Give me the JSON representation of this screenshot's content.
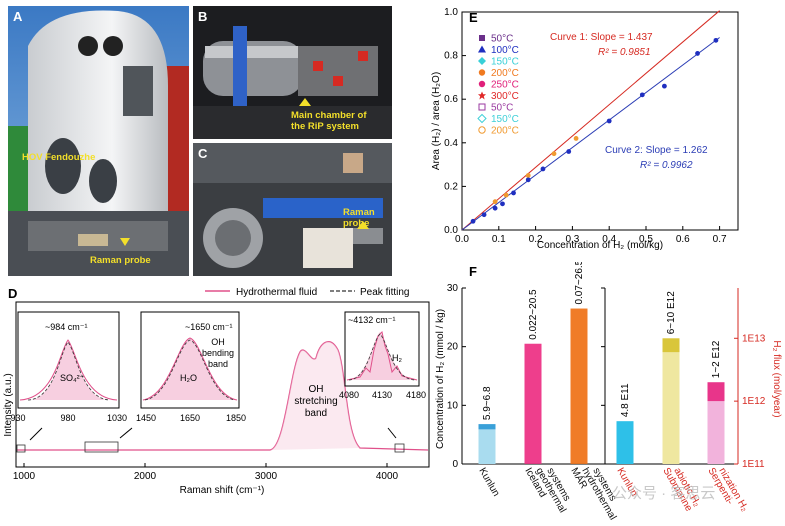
{
  "photos": {
    "A": {
      "label": "A",
      "caption": "HOV Fendouzhe",
      "probe": "Raman probe"
    },
    "B": {
      "label": "B",
      "caption_line1": "Main chamber of",
      "caption_line2": "the RiP system"
    },
    "C": {
      "label": "C",
      "probe": "Raman probe"
    }
  },
  "panel_d": {
    "label": "D",
    "legend_fluid": "Hydrothermal fluid",
    "legend_fit": "Peak fitting",
    "ylabel": "Intensity (a.u.)",
    "xlabel": "Raman shift (cm⁻¹)",
    "xticks": [
      "1000",
      "2000",
      "3000",
      "4000"
    ],
    "oh_stretch_1": "OH",
    "oh_stretch_2": "stretching",
    "oh_stretch_3": "band",
    "inset1": {
      "peak": "~984 cm⁻¹",
      "species": "SO₄²⁻",
      "ticks": [
        "930",
        "980",
        "1030"
      ]
    },
    "inset2": {
      "peak": "~1650 cm⁻¹",
      "band_1": "OH",
      "band_2": "bending",
      "band_3": "band",
      "species": "H₂O",
      "ticks": [
        "1450",
        "1650",
        "1850"
      ]
    },
    "inset3": {
      "peak": "~4132 cm⁻¹",
      "species": "H₂",
      "ticks": [
        "4080",
        "4130",
        "4180"
      ]
    }
  },
  "panel_e": {
    "label": "E",
    "xlabel": "Concentration of H₂ (mol/kg)",
    "ylabel": "Area (H₂) / area (H₂O)",
    "xticks": [
      "0.0",
      "0.1",
      "0.2",
      "0.3",
      "0.4",
      "0.5",
      "0.6",
      "0.7"
    ],
    "yticks": [
      "0.0",
      "0.2",
      "0.4",
      "0.6",
      "0.8",
      "1.0"
    ],
    "curve1": {
      "slope": "Curve 1: Slope = 1.437",
      "r2": "R² = 0.9851",
      "color": "#d62a22"
    },
    "curve2": {
      "slope": "Curve 2: Slope = 1.262",
      "r2": "R² = 0.9962",
      "color": "#2b3db5"
    },
    "legend": [
      {
        "label": "50°C",
        "color": "#6a2f8a",
        "marker": "square-filled"
      },
      {
        "label": "100°C",
        "color": "#1f2fc0",
        "marker": "triangle-filled"
      },
      {
        "label": "150°C",
        "color": "#38d0d8",
        "marker": "diamond-filled"
      },
      {
        "label": "200°C",
        "color": "#f07a20",
        "marker": "circle-filled"
      },
      {
        "label": "250°C",
        "color": "#e0207a",
        "marker": "circle-filled"
      },
      {
        "label": "300°C",
        "color": "#e02828",
        "marker": "star-filled"
      },
      {
        "label": "50°C",
        "color": "#9a3aa0",
        "marker": "square-open"
      },
      {
        "label": "150°C",
        "color": "#40d0d8",
        "marker": "diamond-open"
      },
      {
        "label": "200°C",
        "color": "#f09a30",
        "marker": "circle-open"
      }
    ]
  },
  "chart_data": [
    {
      "type": "scatter",
      "title": "",
      "xlabel": "Concentration of H₂ (mol/kg)",
      "ylabel": "Area (H₂) / area (H₂O)",
      "xlim": [
        0,
        0.75
      ],
      "ylim": [
        0,
        1.0
      ],
      "series": [
        {
          "name": "Curve 1 points",
          "x": [
            0.09,
            0.12,
            0.18,
            0.25,
            0.31
          ],
          "y": [
            0.13,
            0.16,
            0.25,
            0.35,
            0.42
          ],
          "color": "#f09a30"
        },
        {
          "name": "Curve 2 points",
          "x": [
            0.03,
            0.06,
            0.09,
            0.11,
            0.14,
            0.18,
            0.22,
            0.29,
            0.4,
            0.49,
            0.55,
            0.64,
            0.69
          ],
          "y": [
            0.04,
            0.07,
            0.1,
            0.12,
            0.17,
            0.23,
            0.28,
            0.36,
            0.5,
            0.62,
            0.66,
            0.81,
            0.87
          ],
          "color": "#1f2fc0"
        },
        {
          "name": "Curve 1",
          "x": [
            0,
            0.7
          ],
          "y": [
            0,
            1.006
          ],
          "color": "#d62a22",
          "kind": "line"
        },
        {
          "name": "Curve 2",
          "x": [
            0,
            0.7
          ],
          "y": [
            0,
            0.883
          ],
          "color": "#2b3db5",
          "kind": "line"
        }
      ]
    },
    {
      "type": "bar",
      "label": "F",
      "ylabel": "Concentration of H₂ (mmol / kg)",
      "y2label": "H₂ flux (mol/year)",
      "ylim": [
        0,
        30
      ],
      "yticks": [
        "0",
        "10",
        "20",
        "30"
      ],
      "y2ticks": [
        "1E11",
        "1E12",
        "1E13"
      ],
      "categories": [
        "Kunlun",
        "Iceland geothermal systems",
        "MAR hydrothermal systems",
        "Kunlun",
        "Submarine abiotic H₂",
        "Serpentinization H₂"
      ],
      "category_lines": [
        [
          "Kunlun"
        ],
        [
          "Iceland",
          "geothermal",
          "systems"
        ],
        [
          "MAR",
          "hydrothermal",
          "systems"
        ],
        [
          "Kunlun"
        ],
        [
          "Submarine",
          "abiotic H₂"
        ],
        [
          "Serpenti-",
          "nization H₂"
        ]
      ],
      "category_colors": [
        "#111111",
        "#111111",
        "#111111",
        "#d62a22",
        "#d62a22",
        "#d62a22"
      ],
      "series": [
        {
          "name": "Concentration",
          "axis": "left",
          "low": [
            5.9,
            0.022,
            0.07
          ],
          "high": [
            6.8,
            20.5,
            26.5
          ],
          "labels": [
            "5.9~6.8",
            "0.022~20.5",
            "0.07~26.5"
          ],
          "colors": [
            "#a9dcef",
            "#ee3e8c",
            "#f07c28"
          ],
          "top_colors": [
            "#3aa0d8",
            "#ee3e8c",
            "#f07c28"
          ]
        },
        {
          "name": "Flux",
          "axis": "right",
          "low": [
            480000000000.0,
            6000000000000.0,
            1000000000000.0
          ],
          "high": [
            480000000000.0,
            10000000000000.0,
            2000000000000.0
          ],
          "labels": [
            "4.8 E11",
            "6~10 E12",
            "1~2 E12"
          ],
          "colors": [
            "#2ec0e8",
            "#efe7a0",
            "#f2b3dc"
          ],
          "top_colors": [
            "#2ec0e8",
            "#d9c63a",
            "#e8358a"
          ]
        }
      ]
    }
  ],
  "watermark": "公众号 · 客思云"
}
